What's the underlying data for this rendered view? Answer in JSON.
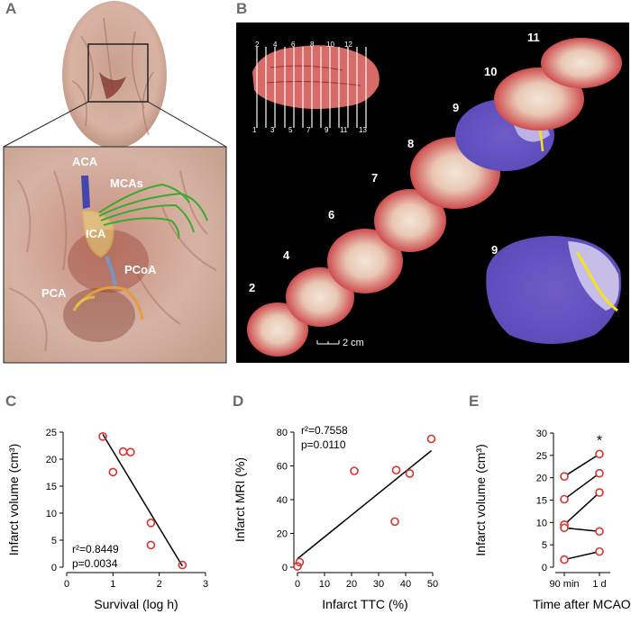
{
  "panels": {
    "A": "A",
    "B": "B",
    "C": "C",
    "D": "D",
    "E": "E"
  },
  "panel_a": {
    "labels": [
      "ACA",
      "MCAs",
      "ICA",
      "PCoA",
      "PCA"
    ]
  },
  "panel_b": {
    "section_labels": [
      "2",
      "4",
      "6",
      "7",
      "8",
      "9",
      "10",
      "11",
      "9"
    ],
    "ruler_top": [
      "2",
      "4",
      "6",
      "8",
      "10",
      "12"
    ],
    "ruler_bottom": [
      "1",
      "3",
      "5",
      "7",
      "9",
      "11",
      "13"
    ],
    "scale_bar": "2 cm"
  },
  "chart_data": [
    {
      "type": "scatter",
      "panel": "C",
      "xlabel": "Survival (log h)",
      "ylabel": "Infarct volume (cm³)",
      "xlim": [
        0,
        3
      ],
      "ylim": [
        0,
        25
      ],
      "xticks": [
        "0",
        "1",
        "2",
        "3"
      ],
      "yticks": [
        "0",
        "5",
        "10",
        "15",
        "20",
        "25"
      ],
      "points": [
        [
          0.78,
          24.2
        ],
        [
          1.0,
          17.6
        ],
        [
          1.22,
          21.4
        ],
        [
          1.38,
          21.3
        ],
        [
          1.82,
          8.2
        ],
        [
          1.82,
          4.1
        ],
        [
          2.5,
          0.4
        ]
      ],
      "fit": [
        [
          0.78,
          24.6
        ],
        [
          2.5,
          0.2
        ]
      ],
      "annotations": [
        "r²=0.8449",
        "p=0.0034"
      ]
    },
    {
      "type": "scatter",
      "panel": "D",
      "xlabel": "Infarct TTC (%)",
      "ylabel": "Infarct MRI (%)",
      "xlim": [
        0,
        50
      ],
      "ylim": [
        0,
        80
      ],
      "xticks": [
        "0",
        "10",
        "20",
        "30",
        "40",
        "50"
      ],
      "yticks": [
        "0",
        "20",
        "40",
        "60",
        "80"
      ],
      "points": [
        [
          0,
          0.5
        ],
        [
          0.8,
          3
        ],
        [
          21,
          57
        ],
        [
          36,
          27
        ],
        [
          36.5,
          57.5
        ],
        [
          41.5,
          55.5
        ],
        [
          49.5,
          76
        ]
      ],
      "fit": [
        [
          0,
          5
        ],
        [
          49.5,
          69
        ]
      ],
      "annotations": [
        "r²=0.7558",
        "p=0.0110"
      ]
    },
    {
      "type": "line",
      "panel": "E",
      "xlabel": "Time after MCAO",
      "ylabel": "Infarct volume (cm³)",
      "categories": [
        "90  min",
        "1 d"
      ],
      "ylim": [
        0,
        30
      ],
      "yticks": [
        "0",
        "5",
        "10",
        "15",
        "20",
        "25",
        "30"
      ],
      "pairs": [
        [
          20.3,
          25.3
        ],
        [
          15.2,
          21.0
        ],
        [
          9.5,
          16.7
        ],
        [
          8.8,
          8.0
        ],
        [
          1.7,
          3.5
        ]
      ],
      "annotations": [
        "*"
      ]
    }
  ]
}
